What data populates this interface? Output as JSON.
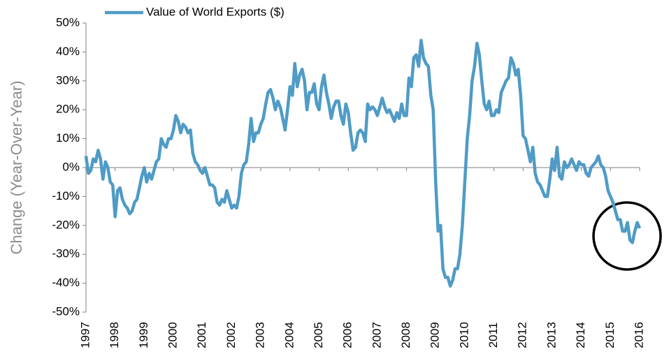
{
  "chart_data": {
    "type": "line",
    "y_label": "Change (Year-Over-Year)",
    "categories": [
      "1997",
      null,
      null,
      null,
      null,
      null,
      null,
      null,
      null,
      null,
      null,
      null,
      "1998",
      null,
      null,
      null,
      null,
      null,
      null,
      null,
      null,
      null,
      null,
      null,
      "1999",
      null,
      null,
      null,
      null,
      null,
      null,
      null,
      null,
      null,
      null,
      null,
      "2000",
      null,
      null,
      null,
      null,
      null,
      null,
      null,
      null,
      null,
      null,
      null,
      "2001",
      null,
      null,
      null,
      null,
      null,
      null,
      null,
      null,
      null,
      null,
      null,
      "2002",
      null,
      null,
      null,
      null,
      null,
      null,
      null,
      null,
      null,
      null,
      null,
      "2003",
      null,
      null,
      null,
      null,
      null,
      null,
      null,
      null,
      null,
      null,
      null,
      "2004",
      null,
      null,
      null,
      null,
      null,
      null,
      null,
      null,
      null,
      null,
      null,
      "2005",
      null,
      null,
      null,
      null,
      null,
      null,
      null,
      null,
      null,
      null,
      null,
      "2006",
      null,
      null,
      null,
      null,
      null,
      null,
      null,
      null,
      null,
      null,
      null,
      "2007",
      null,
      null,
      null,
      null,
      null,
      null,
      null,
      null,
      null,
      null,
      null,
      "2008",
      null,
      null,
      null,
      null,
      null,
      null,
      null,
      null,
      null,
      null,
      null,
      "2009",
      null,
      null,
      null,
      null,
      null,
      null,
      null,
      null,
      null,
      null,
      null,
      "2010",
      null,
      null,
      null,
      null,
      null,
      null,
      null,
      null,
      null,
      null,
      null,
      "2011",
      null,
      null,
      null,
      null,
      null,
      null,
      null,
      null,
      null,
      null,
      null,
      "2012",
      null,
      null,
      null,
      null,
      null,
      null,
      null,
      null,
      null,
      null,
      null,
      "2013",
      null,
      null,
      null,
      null,
      null,
      null,
      null,
      null,
      null,
      null,
      null,
      "2014",
      null,
      null,
      null,
      null,
      null,
      null,
      null,
      null,
      null,
      null,
      null,
      "2015",
      null,
      null,
      null,
      null,
      null,
      null,
      null,
      null,
      null,
      null,
      null,
      "2016"
    ],
    "series": [
      {
        "name": "Value of World Exports ($)",
        "color": "#4f9bc6",
        "values": [
          4,
          -2,
          -1,
          3,
          2,
          6,
          3,
          -4,
          2,
          0,
          -5,
          -6,
          -17,
          -8,
          -7,
          -11,
          -13,
          -14,
          -16,
          -15,
          -12,
          -11,
          -7,
          -3,
          0,
          -5,
          -2,
          -4,
          -1,
          2,
          3,
          10,
          8,
          7,
          10,
          10,
          13,
          18,
          16,
          12,
          15,
          14,
          12,
          13,
          5,
          2,
          1,
          -1,
          -2,
          0,
          -3,
          -6,
          -6,
          -7,
          -12,
          -13,
          -11,
          -12,
          -8,
          -11,
          -14,
          -13,
          -14,
          -10,
          -2,
          1,
          2,
          8,
          17,
          9,
          12,
          12,
          15,
          17,
          22,
          26,
          27,
          24,
          20,
          23,
          21,
          17,
          13,
          20,
          28,
          25,
          36,
          28,
          32,
          34,
          30,
          20,
          26,
          26,
          29,
          22,
          20,
          28,
          32,
          26,
          22,
          17,
          21,
          23,
          23,
          18,
          15,
          22,
          19,
          12,
          6,
          7,
          12,
          13,
          12,
          9,
          22,
          20,
          21,
          20,
          18,
          21,
          24,
          21,
          19,
          20,
          18,
          16,
          19,
          17,
          22,
          18,
          18,
          31,
          28,
          38,
          39,
          35,
          44,
          38,
          36,
          35,
          25,
          20,
          -5,
          -22,
          -20,
          -35,
          -38,
          -38,
          -41,
          -39,
          -35,
          -35,
          -30,
          -20,
          -5,
          10,
          18,
          30,
          35,
          43,
          39,
          30,
          22,
          20,
          23,
          18,
          18,
          20,
          19,
          26,
          28,
          30,
          31,
          38,
          36,
          32,
          34,
          25,
          11,
          10,
          6,
          2,
          7,
          -2,
          -5,
          -6,
          -8,
          -10,
          -10,
          -4,
          3,
          -1,
          7,
          -3,
          -4,
          2,
          0,
          1,
          3,
          1,
          -1,
          2,
          1,
          1,
          -2,
          -3,
          0,
          1,
          2,
          4,
          1,
          0,
          -3,
          -8,
          -10,
          -12,
          -15,
          -18,
          -18,
          -22,
          -22,
          -19,
          -25,
          -26,
          -22,
          -19,
          -21
        ]
      }
    ],
    "ylim": [
      -50,
      50
    ],
    "yticks": [
      {
        "value": -50,
        "label": "-50%"
      },
      {
        "value": -40,
        "label": "-40%"
      },
      {
        "value": -30,
        "label": "-30%"
      },
      {
        "value": -20,
        "label": "-20%"
      },
      {
        "value": -10,
        "label": "-10%"
      },
      {
        "value": 0,
        "label": "0%"
      },
      {
        "value": 10,
        "label": "10%"
      },
      {
        "value": 20,
        "label": "20%"
      },
      {
        "value": 30,
        "label": "30%"
      },
      {
        "value": 40,
        "label": "40%"
      },
      {
        "value": 50,
        "label": "50%"
      }
    ],
    "grid": false,
    "legend": "top"
  }
}
